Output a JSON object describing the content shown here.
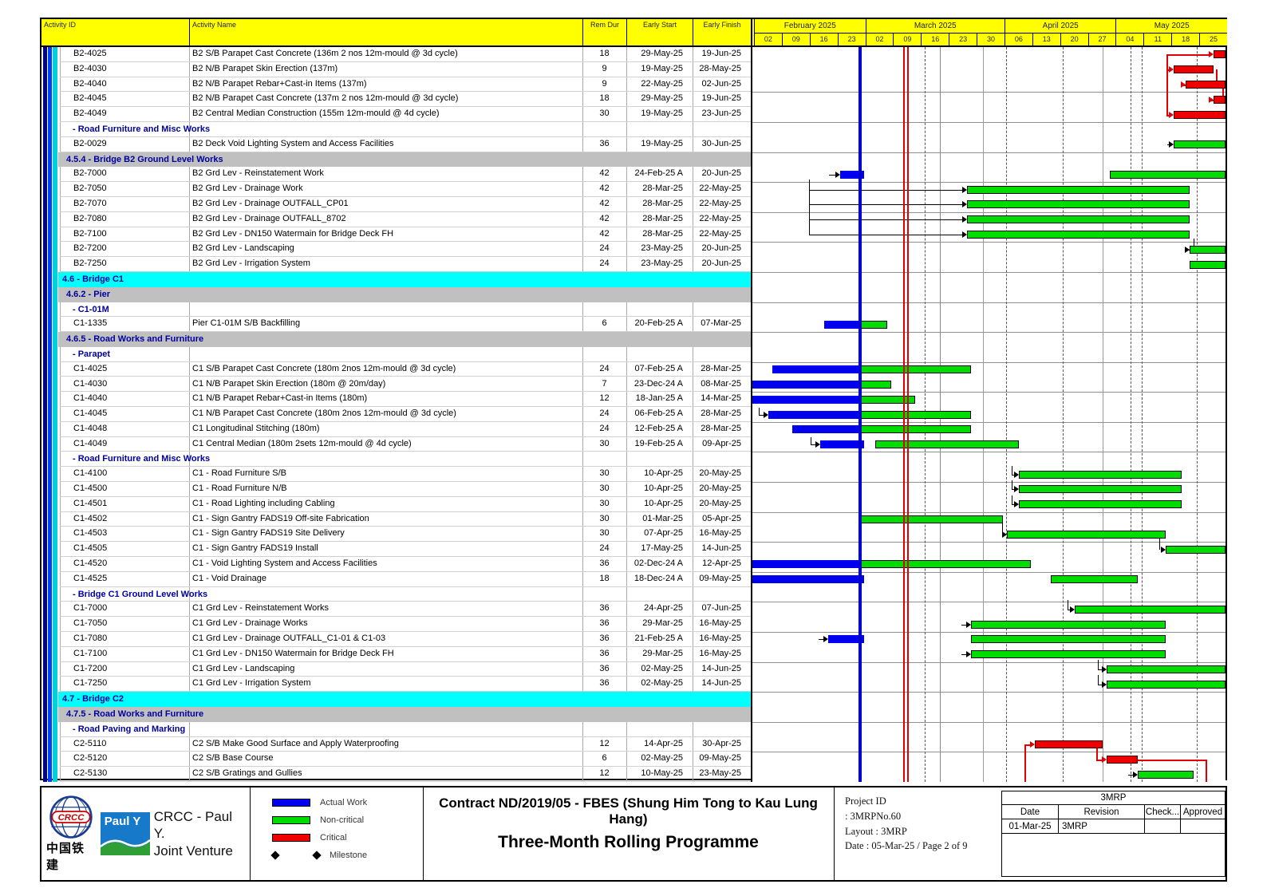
{
  "table": {
    "columns": [
      "Activity ID",
      "Activity Name",
      "Rem Dur",
      "Early Start",
      "Early Finish"
    ]
  },
  "timeline": {
    "start": "2025-02-02",
    "end": "2025-06-01",
    "months": [
      {
        "label": "February 2025",
        "weeks": [
          "02",
          "09",
          "16",
          "23"
        ]
      },
      {
        "label": "March 2025",
        "weeks": [
          "02",
          "09",
          "16",
          "23",
          "30"
        ]
      },
      {
        "label": "April 2025",
        "weeks": [
          "06",
          "13",
          "20",
          "27"
        ]
      },
      {
        "label": "May 2025",
        "weeks": [
          "04",
          "11",
          "18",
          "25"
        ]
      }
    ]
  },
  "chart_data": {
    "type": "gantt",
    "title": "Three-Month Rolling Programme",
    "data_date": "2025-03-01",
    "reference_lines": [
      "2025-03-12",
      "2025-03-13"
    ],
    "bar_kinds": {
      "A": "Actual Work",
      "N": "Non-critical",
      "C": "Critical"
    },
    "rows": [
      {
        "t": "a",
        "id": "B2-4025",
        "name": "B2 S/B Parapet Cast Concrete (136m 2 nos 12m-mould @ 3d cycle)",
        "dur": "18",
        "start": "29-May-25",
        "finish": "19-Jun-25",
        "bars": [
          {
            "k": "C",
            "s": "2025-05-29",
            "e": "2025-06-19"
          }
        ]
      },
      {
        "t": "a",
        "id": "B2-4030",
        "name": "B2 N/B Parapet Skin Erection (137m)",
        "dur": "9",
        "start": "19-May-25",
        "finish": "28-May-25",
        "bars": [
          {
            "k": "C",
            "s": "2025-05-19",
            "e": "2025-05-28"
          }
        ]
      },
      {
        "t": "a",
        "id": "B2-4040",
        "name": "B2 N/B Parapet Rebar+Cast-in Items (137m)",
        "dur": "9",
        "start": "22-May-25",
        "finish": "02-Jun-25",
        "bars": [
          {
            "k": "C",
            "s": "2025-05-22",
            "e": "2025-06-02"
          }
        ]
      },
      {
        "t": "a",
        "id": "B2-4045",
        "name": "B2 N/B Parapet Cast Concrete (137m 2 nos 12m-mould @ 3d cycle)",
        "dur": "18",
        "start": "29-May-25",
        "finish": "19-Jun-25",
        "bars": [
          {
            "k": "C",
            "s": "2025-05-29",
            "e": "2025-06-19"
          }
        ]
      },
      {
        "t": "a",
        "id": "B2-4049",
        "name": "B2 Central Median Construction (155m 12m-mould @ 4d cycle)",
        "dur": "30",
        "start": "19-May-25",
        "finish": "23-Jun-25",
        "bars": [
          {
            "k": "C",
            "s": "2025-05-19",
            "e": "2025-06-23"
          }
        ]
      },
      {
        "t": "h",
        "name": "- Road Furniture and Misc Works"
      },
      {
        "t": "a",
        "id": "B2-0029",
        "name": "B2 Deck Void Lighting System and Access Facilities",
        "dur": "36",
        "start": "19-May-25",
        "finish": "30-Jun-25",
        "bars": [
          {
            "k": "N",
            "s": "2025-05-19",
            "e": "2025-06-30"
          }
        ]
      },
      {
        "t": "g",
        "name": "4.5.4 - Bridge B2 Ground Level Works"
      },
      {
        "t": "a",
        "id": "B2-7000",
        "name": "B2 Grd Lev - Reinstatement Work",
        "dur": "42",
        "start": "24-Feb-25 A",
        "finish": "20-Jun-25",
        "bars": [
          {
            "k": "A",
            "s": "2025-02-24",
            "e": "2025-03-01"
          },
          {
            "k": "N",
            "s": "2025-05-03",
            "e": "2025-06-20"
          }
        ]
      },
      {
        "t": "a",
        "id": "B2-7050",
        "name": "B2 Grd Lev - Drainage Work",
        "dur": "42",
        "start": "28-Mar-25",
        "finish": "22-May-25",
        "bars": [
          {
            "k": "N",
            "s": "2025-03-28",
            "e": "2025-05-22"
          }
        ]
      },
      {
        "t": "a",
        "id": "B2-7070",
        "name": "B2 Grd Lev - Drainage OUTFALL_CP01",
        "dur": "42",
        "start": "28-Mar-25",
        "finish": "22-May-25",
        "bars": [
          {
            "k": "N",
            "s": "2025-03-28",
            "e": "2025-05-22"
          }
        ]
      },
      {
        "t": "a",
        "id": "B2-7080",
        "name": "B2 Grd Lev - Drainage OUTFALL_8702",
        "dur": "42",
        "start": "28-Mar-25",
        "finish": "22-May-25",
        "bars": [
          {
            "k": "N",
            "s": "2025-03-28",
            "e": "2025-05-22"
          }
        ]
      },
      {
        "t": "a",
        "id": "B2-7100",
        "name": "B2 Grd Lev - DN150 Watermain for Bridge Deck FH",
        "dur": "42",
        "start": "28-Mar-25",
        "finish": "22-May-25",
        "bars": [
          {
            "k": "N",
            "s": "2025-03-28",
            "e": "2025-05-22"
          }
        ]
      },
      {
        "t": "a",
        "id": "B2-7200",
        "name": "B2 Grd Lev - Landscaping",
        "dur": "24",
        "start": "23-May-25",
        "finish": "20-Jun-25",
        "bars": [
          {
            "k": "N",
            "s": "2025-05-23",
            "e": "2025-06-20"
          }
        ]
      },
      {
        "t": "a",
        "id": "B2-7250",
        "name": "B2 Grd Lev - Irrigation System",
        "dur": "24",
        "start": "23-May-25",
        "finish": "20-Jun-25",
        "bars": [
          {
            "k": "N",
            "s": "2025-05-23",
            "e": "2025-06-20"
          }
        ]
      },
      {
        "t": "c",
        "name": "4.6 - Bridge C1"
      },
      {
        "t": "g",
        "name": "4.6.2 - Pier"
      },
      {
        "t": "h",
        "name": "- C1-01M"
      },
      {
        "t": "a",
        "id": "C1-1335",
        "name": "Pier C1-01M S/B Backfilling",
        "dur": "6",
        "start": "20-Feb-25 A",
        "finish": "07-Mar-25",
        "bars": [
          {
            "k": "A",
            "s": "2025-02-20",
            "e": "2025-03-01"
          },
          {
            "k": "N",
            "s": "2025-03-01",
            "e": "2025-03-07"
          }
        ]
      },
      {
        "t": "g",
        "name": "4.6.5 - Road Works and Furniture"
      },
      {
        "t": "h",
        "name": "- Parapet"
      },
      {
        "t": "a",
        "id": "C1-4025",
        "name": "C1 S/B Parapet Cast Concrete (180m 2nos 12m-mould @ 3d cycle)",
        "dur": "24",
        "start": "07-Feb-25 A",
        "finish": "28-Mar-25",
        "bars": [
          {
            "k": "A",
            "s": "2025-02-07",
            "e": "2025-03-01"
          },
          {
            "k": "N",
            "s": "2025-03-01",
            "e": "2025-03-28"
          }
        ]
      },
      {
        "t": "a",
        "id": "C1-4030",
        "name": "C1 N/B Parapet Skin Erection (180m @ 20m/day)",
        "dur": "7",
        "start": "23-Dec-24 A",
        "finish": "08-Mar-25",
        "bars": [
          {
            "k": "A",
            "s": "2024-12-23",
            "e": "2025-03-01"
          },
          {
            "k": "N",
            "s": "2025-03-01",
            "e": "2025-03-08"
          }
        ]
      },
      {
        "t": "a",
        "id": "C1-4040",
        "name": "C1 N/B Parapet Rebar+Cast-in Items (180m)",
        "dur": "12",
        "start": "18-Jan-25 A",
        "finish": "14-Mar-25",
        "bars": [
          {
            "k": "A",
            "s": "2025-01-18",
            "e": "2025-03-01"
          },
          {
            "k": "N",
            "s": "2025-03-01",
            "e": "2025-03-14"
          }
        ]
      },
      {
        "t": "a",
        "id": "C1-4045",
        "name": "C1 N/B Parapet Cast Concrete (180m 2nos 12m-mould @ 3d cycle)",
        "dur": "24",
        "start": "06-Feb-25 A",
        "finish": "28-Mar-25",
        "bars": [
          {
            "k": "A",
            "s": "2025-02-06",
            "e": "2025-03-01"
          },
          {
            "k": "N",
            "s": "2025-03-01",
            "e": "2025-03-28"
          }
        ]
      },
      {
        "t": "a",
        "id": "C1-4048",
        "name": "C1 Longitudinal Stitching (180m)",
        "dur": "24",
        "start": "12-Feb-25 A",
        "finish": "28-Mar-25",
        "bars": [
          {
            "k": "A",
            "s": "2025-02-12",
            "e": "2025-03-01"
          },
          {
            "k": "N",
            "s": "2025-03-01",
            "e": "2025-03-28"
          }
        ]
      },
      {
        "t": "a",
        "id": "C1-4049",
        "name": "C1 Central Median (180m 2sets 12m-mould @ 4d cycle)",
        "dur": "30",
        "start": "19-Feb-25 A",
        "finish": "09-Apr-25",
        "bars": [
          {
            "k": "A",
            "s": "2025-02-19",
            "e": "2025-03-01"
          },
          {
            "k": "N",
            "s": "2025-03-05",
            "e": "2025-04-09"
          }
        ]
      },
      {
        "t": "h",
        "name": "- Road Furniture and Misc Works"
      },
      {
        "t": "a",
        "id": "C1-4100",
        "name": "C1 - Road Furniture S/B",
        "dur": "30",
        "start": "10-Apr-25",
        "finish": "20-May-25",
        "bars": [
          {
            "k": "N",
            "s": "2025-04-10",
            "e": "2025-05-20"
          }
        ]
      },
      {
        "t": "a",
        "id": "C1-4500",
        "name": "C1 - Road Furniture N/B",
        "dur": "30",
        "start": "10-Apr-25",
        "finish": "20-May-25",
        "bars": [
          {
            "k": "N",
            "s": "2025-04-10",
            "e": "2025-05-20"
          }
        ]
      },
      {
        "t": "a",
        "id": "C1-4501",
        "name": "C1 - Road Lighting including Cabling",
        "dur": "30",
        "start": "10-Apr-25",
        "finish": "20-May-25",
        "bars": [
          {
            "k": "N",
            "s": "2025-04-10",
            "e": "2025-05-20"
          }
        ]
      },
      {
        "t": "a",
        "id": "C1-4502",
        "name": "C1 - Sign Gantry FADS19 Off-site Fabrication",
        "dur": "30",
        "start": "01-Mar-25",
        "finish": "05-Apr-25",
        "bars": [
          {
            "k": "N",
            "s": "2025-03-01",
            "e": "2025-04-05"
          }
        ]
      },
      {
        "t": "a",
        "id": "C1-4503",
        "name": "C1 - Sign Gantry FADS19 Site Delivery",
        "dur": "30",
        "start": "07-Apr-25",
        "finish": "16-May-25",
        "bars": [
          {
            "k": "N",
            "s": "2025-04-07",
            "e": "2025-05-16"
          }
        ]
      },
      {
        "t": "a",
        "id": "C1-4505",
        "name": "C1 - Sign Gantry FADS19 Install",
        "dur": "24",
        "start": "17-May-25",
        "finish": "14-Jun-25",
        "bars": [
          {
            "k": "N",
            "s": "2025-05-17",
            "e": "2025-06-14"
          }
        ]
      },
      {
        "t": "a",
        "id": "C1-4520",
        "name": "C1 - Void Lighting System and Access Facilities",
        "dur": "36",
        "start": "02-Dec-24 A",
        "finish": "12-Apr-25",
        "bars": [
          {
            "k": "A",
            "s": "2024-12-02",
            "e": "2025-03-01"
          },
          {
            "k": "N",
            "s": "2025-03-01",
            "e": "2025-04-12"
          }
        ]
      },
      {
        "t": "a",
        "id": "C1-4525",
        "name": "C1 - Void Drainage",
        "dur": "18",
        "start": "18-Dec-24 A",
        "finish": "09-May-25",
        "bars": [
          {
            "k": "A",
            "s": "2024-12-18",
            "e": "2025-03-01"
          },
          {
            "k": "N",
            "s": "2025-04-18",
            "e": "2025-05-09"
          }
        ]
      },
      {
        "t": "h",
        "name": "- Bridge C1 Ground Level Works"
      },
      {
        "t": "a",
        "id": "C1-7000",
        "name": "C1 Grd Lev - Reinstatement Works",
        "dur": "36",
        "start": "24-Apr-25",
        "finish": "07-Jun-25",
        "bars": [
          {
            "k": "N",
            "s": "2025-04-24",
            "e": "2025-06-07"
          }
        ]
      },
      {
        "t": "a",
        "id": "C1-7050",
        "name": "C1 Grd Lev - Drainage Works",
        "dur": "36",
        "start": "29-Mar-25",
        "finish": "16-May-25",
        "bars": [
          {
            "k": "N",
            "s": "2025-03-29",
            "e": "2025-05-16"
          }
        ]
      },
      {
        "t": "a",
        "id": "C1-7080",
        "name": "C1 Grd Lev - Drainage OUTFALL_C1-01 & C1-03",
        "dur": "36",
        "start": "21-Feb-25 A",
        "finish": "16-May-25",
        "bars": [
          {
            "k": "A",
            "s": "2025-02-21",
            "e": "2025-03-01"
          },
          {
            "k": "N",
            "s": "2025-03-29",
            "e": "2025-05-16"
          }
        ]
      },
      {
        "t": "a",
        "id": "C1-7100",
        "name": "C1 Grd Lev - DN150 Watermain for Bridge Deck FH",
        "dur": "36",
        "start": "29-Mar-25",
        "finish": "16-May-25",
        "bars": [
          {
            "k": "N",
            "s": "2025-03-29",
            "e": "2025-05-16"
          }
        ]
      },
      {
        "t": "a",
        "id": "C1-7200",
        "name": "C1 Grd Lev - Landscaping",
        "dur": "36",
        "start": "02-May-25",
        "finish": "14-Jun-25",
        "bars": [
          {
            "k": "N",
            "s": "2025-05-02",
            "e": "2025-06-14"
          }
        ]
      },
      {
        "t": "a",
        "id": "C1-7250",
        "name": "C1 Grd Lev - Irrigation System",
        "dur": "36",
        "start": "02-May-25",
        "finish": "14-Jun-25",
        "bars": [
          {
            "k": "N",
            "s": "2025-05-02",
            "e": "2025-06-14"
          }
        ]
      },
      {
        "t": "c",
        "name": "4.7 - Bridge C2"
      },
      {
        "t": "g",
        "name": "4.7.5 - Road Works and Furniture"
      },
      {
        "t": "h",
        "name": "- Road Paving and Marking"
      },
      {
        "t": "a",
        "id": "C2-5110",
        "name": "C2 S/B Make Good Surface and Apply Waterproofing",
        "dur": "12",
        "start": "14-Apr-25",
        "finish": "30-Apr-25",
        "bars": [
          {
            "k": "C",
            "s": "2025-04-14",
            "e": "2025-04-30"
          }
        ]
      },
      {
        "t": "a",
        "id": "C2-5120",
        "name": "C2 S/B Base Course",
        "dur": "6",
        "start": "02-May-25",
        "finish": "09-May-25",
        "bars": [
          {
            "k": "C",
            "s": "2025-05-02",
            "e": "2025-05-09"
          }
        ]
      },
      {
        "t": "a",
        "id": "C2-5130",
        "name": "C2 S/B Gratings and Gullies",
        "dur": "12",
        "start": "10-May-25",
        "finish": "23-May-25",
        "bars": [
          {
            "k": "N",
            "s": "2025-05-10",
            "e": "2025-05-23"
          }
        ]
      }
    ]
  },
  "footer": {
    "company": {
      "crcc_text": "CRCC",
      "crcc_cn": "中国铁建",
      "pauly_text": "Paul Y",
      "name_line1": "CRCC - Paul Y.",
      "name_line2": "Joint Venture"
    },
    "legend": [
      {
        "label": "Actual Work",
        "color": "#0000ee",
        "shape": "bar"
      },
      {
        "label": "Non-critical",
        "color": "#00dc00",
        "shape": "bar"
      },
      {
        "label": "Critical",
        "color": "#ee0000",
        "shape": "bar"
      },
      {
        "label": "Milestone",
        "color": "#000000",
        "shape": "diamond"
      }
    ],
    "title_line1": "Contract ND/2019/05 - FBES (Shung Him Tong to Kau Lung Hang)",
    "title_line2": "Three-Month Rolling Programme",
    "info": {
      "project_id_label": "Project ID",
      "project_id_value": ": 3MRPNo.60",
      "layout": "Layout : 3MRP",
      "date": "Date : 05-Mar-25  / Page 2 of  9"
    },
    "revision_table": {
      "title": "3MRP",
      "headers": [
        "Date",
        "Revision",
        "Check...",
        "Approved"
      ],
      "rows": [
        [
          "01-Mar-25",
          "3MRP",
          "",
          ""
        ]
      ]
    }
  }
}
